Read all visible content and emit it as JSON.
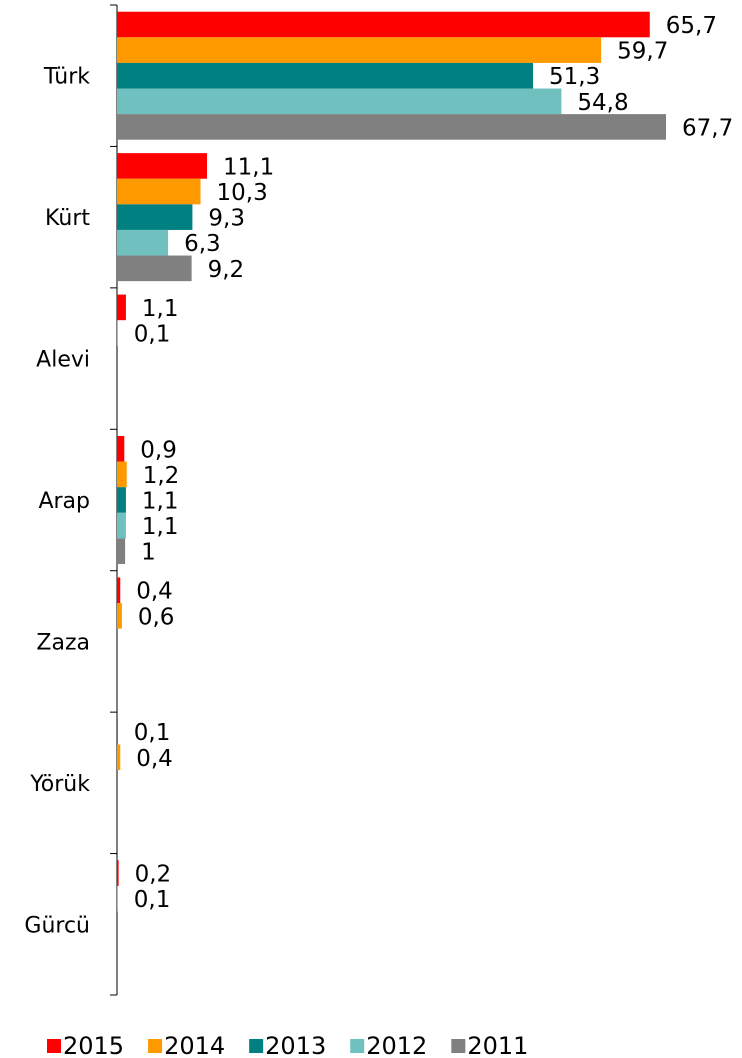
{
  "chart_data": {
    "type": "hbar",
    "categories": [
      "Türk",
      "Kürt",
      "Alevi",
      "Arap",
      "Zaza",
      "Yörük",
      "Gürcü"
    ],
    "series": [
      {
        "name": "2015",
        "color": "#ff0000",
        "values": [
          65.7,
          11.1,
          1.1,
          0.9,
          0.4,
          0.1,
          0.2
        ],
        "value_labels": [
          "65,7",
          "11,1",
          "1,1",
          "0,9",
          "0,4",
          "0,1",
          "0,2"
        ]
      },
      {
        "name": "2014",
        "color": "#ff9900",
        "values": [
          59.7,
          10.3,
          0.1,
          1.2,
          0.6,
          0.4,
          0.1
        ],
        "value_labels": [
          "59,7",
          "10,3",
          "0,1",
          "1,2",
          "0,6",
          "0,4",
          "0,1"
        ]
      },
      {
        "name": "2013",
        "color": "#008080",
        "values": [
          51.3,
          9.3,
          null,
          1.1,
          null,
          null,
          null
        ],
        "value_labels": [
          "51,3",
          "9,3",
          null,
          "1,1",
          null,
          null,
          null
        ]
      },
      {
        "name": "2012",
        "color": "#70c0c0",
        "values": [
          54.8,
          6.3,
          null,
          1.1,
          null,
          null,
          null
        ],
        "value_labels": [
          "54,8",
          "6,3",
          null,
          "1,1",
          null,
          null,
          null
        ]
      },
      {
        "name": "2011",
        "color": "#808080",
        "values": [
          67.7,
          9.2,
          null,
          1,
          null,
          null,
          null
        ],
        "value_labels": [
          "67,7",
          "9,2",
          null,
          "1",
          null,
          null,
          null
        ]
      }
    ],
    "legend": "bottom"
  }
}
